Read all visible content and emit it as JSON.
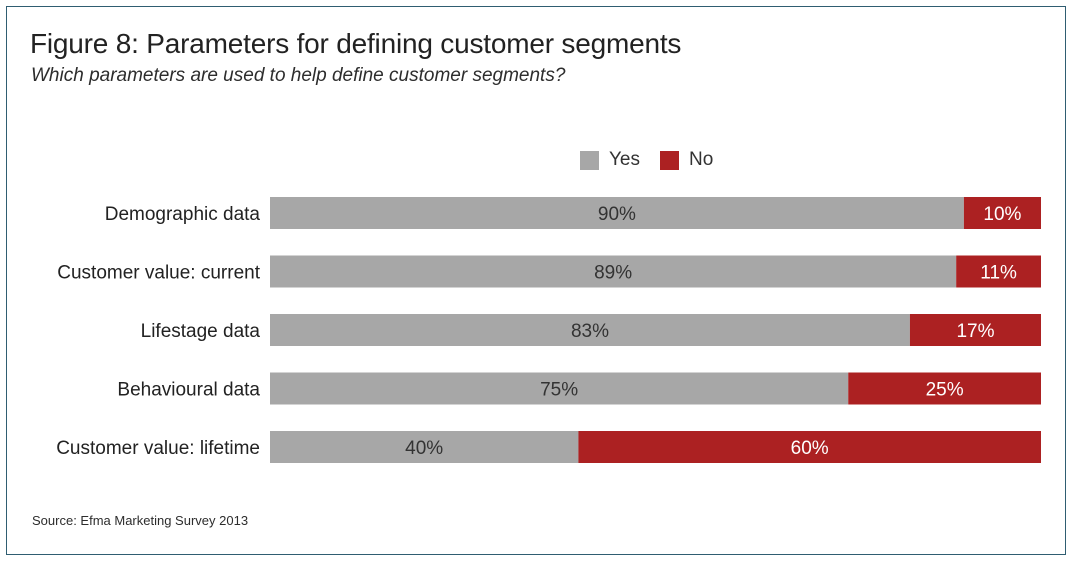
{
  "title": "Figure 8: Parameters for defining customer segments",
  "subtitle": "Which parameters are used to help define customer segments?",
  "source": "Source: Efma Marketing Survey 2013",
  "colors": {
    "yes": "#a7a7a7",
    "no": "#ac2122",
    "frame": "#2f5d71",
    "yes_text": "#333333",
    "no_text": "#ffffff"
  },
  "legend": [
    {
      "label": "Yes",
      "color": "#a7a7a7"
    },
    {
      "label": "No",
      "color": "#ac2122"
    }
  ],
  "chart_data": {
    "type": "bar",
    "orientation": "horizontal",
    "stacked": true,
    "categories": [
      "Demographic data",
      "Customer value: current",
      "Lifestage data",
      "Behavioural data",
      "Customer value: lifetime"
    ],
    "series": [
      {
        "name": "Yes",
        "values": [
          90,
          89,
          83,
          75,
          40
        ],
        "labels": [
          "90%",
          "89%",
          "83%",
          "75%",
          "40%"
        ]
      },
      {
        "name": "No",
        "values": [
          10,
          11,
          17,
          25,
          60
        ],
        "labels": [
          "10%",
          "11%",
          "17%",
          "25%",
          "60%"
        ]
      }
    ],
    "xlim": [
      0,
      100
    ],
    "grid": false,
    "legend_position": "top"
  }
}
